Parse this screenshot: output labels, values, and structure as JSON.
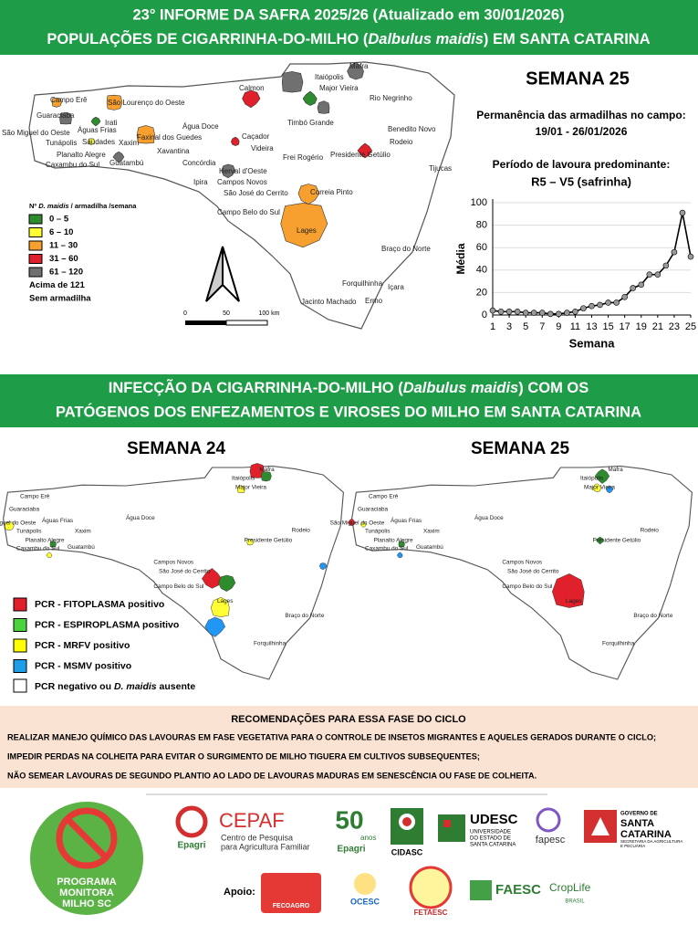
{
  "header": {
    "line1": "23° INFORME DA SAFRA 2025/26 (Atualizado em 30/01/2026)",
    "line2": [
      "POPULAÇÕES DE CIGARRINHA-DO-MILHO (",
      "Dalbulus maidis",
      ") EM SANTA CATARINA"
    ]
  },
  "top_panel": {
    "week_title": "SEMANA 25",
    "permanence_label": "Permanência das armadilhas no campo:",
    "permanence_dates": "19/01 - 26/01/2026",
    "period_label": "Período de lavoura predominante:",
    "period_value": "R5 – V5 (safrinha)"
  },
  "map": {
    "labels": [
      "Campo Erê",
      "São Lourenço do Oeste",
      "Guaraciaba",
      "Irati",
      "Águas Frias",
      "São Miguel do Oeste",
      "Saudades",
      "Xaxim",
      "Faxinal dos Guedes",
      "Água Doce",
      "Xavantina",
      "Tunápolis",
      "Planalto Alegre",
      "Caxambu do Sul",
      "Guatambú",
      "Concórdia",
      "Herval d'Oeste",
      "Ipira",
      "Campos Novos",
      "São José do Cerrito",
      "Campo Belo do Sul",
      "Calmon",
      "Caçador",
      "Videira",
      "Timbó Grande",
      "Frei Rogério",
      "Itaiópolis",
      "Major Vieira",
      "Mafra",
      "Rio Negrinho",
      "Benedito Novo",
      "Rodeio",
      "Presidente Getúlio",
      "Tijucas",
      "Correia Pinto",
      "Lages",
      "Braço do Norte",
      "Forquilhinha",
      "Içara",
      "Jacinto Machado",
      "Ermo"
    ],
    "legend_title": [
      "Nº ",
      "D. maidis",
      " / armadilha /semana"
    ],
    "legend_items": [
      "0 – 5",
      "6 – 10",
      "11 – 30",
      "31 – 60",
      "61 – 120",
      "Acima de 121",
      "Sem armadilha"
    ],
    "scale": [
      "0",
      "50",
      "100 km"
    ]
  },
  "chart_data": {
    "type": "line",
    "x": [
      1,
      2,
      3,
      4,
      5,
      6,
      7,
      8,
      9,
      10,
      11,
      12,
      13,
      14,
      15,
      16,
      17,
      18,
      19,
      20,
      21,
      22,
      23,
      24,
      25
    ],
    "values": [
      4,
      3,
      3,
      3,
      2,
      2,
      2,
      1,
      1,
      2,
      3,
      6,
      8,
      9,
      11,
      11,
      16,
      24,
      27,
      36,
      36,
      44,
      56,
      91,
      52
    ],
    "color": "#000000",
    "marker_color": "#999999",
    "xlim": [
      1,
      25
    ],
    "xticks": [
      1,
      3,
      5,
      7,
      9,
      11,
      13,
      15,
      17,
      19,
      21,
      23,
      25
    ],
    "ylim": [
      0,
      100
    ],
    "yticks": [
      0,
      20,
      40,
      60,
      80,
      100
    ],
    "grid": true,
    "xlabel": "Semana",
    "ylabel": "Média"
  },
  "infection_header": {
    "line1": [
      "INFECÇÃO DA CIGARRINHA-DO-MILHO (",
      "Dalbulus maidis",
      ") COM OS"
    ],
    "line2": "PATÓGENOS DOS ENFEZAMENTOS E VIROSES DO MILHO EM SANTA CATARINA"
  },
  "infection_maps": {
    "titles": [
      "SEMANA 24",
      "SEMANA 25"
    ]
  },
  "pcr_legend": {
    "items": [
      "PCR - FITOPLASMA positivo",
      "PCR - ESPIROPLASMA positivo",
      "PCR - MRFV positivo",
      "PCR - MSMV positivo"
    ],
    "negative": [
      "PCR negativo ou ",
      "D. maidis",
      " ausente"
    ]
  },
  "recommendations": {
    "title": "RECOMENDAÇÕES PARA ESSA FASE DO CICLO",
    "items": [
      "REALIZAR MANEJO QUÍMICO DAS LAVOURAS EM FASE VEGETATIVA PARA O CONTROLE DE INSETOS MIGRANTES E AQUELES GERADOS DURANTE O CICLO;",
      "IMPEDIR PERDAS NA COLHEITA PARA EVITAR O SURGIMENTO DE MILHO TIGUERA EM CULTIVOS SUBSEQUENTES;",
      "NÃO SEMEAR LAVOURAS DE SEGUNDO PLANTIO AO LADO DE LAVOURAS MADURAS EM SENESCÊNCIA OU FASE DE COLHEITA."
    ]
  },
  "footer": {
    "program": [
      "PROGRAMA",
      "MONITORA",
      "MILHO SC"
    ],
    "cepaf": [
      "CEPAF",
      "Centro de Pesquisa",
      "para Agricultura Familiar",
      "Epagri"
    ],
    "anniversary": [
      "50",
      "anos",
      "Epagri"
    ],
    "cidasc": "CIDASC",
    "udesc": [
      "UDESC",
      "UNIVERSIDADE",
      "DO ESTADO DE",
      "SANTA CATARINA"
    ],
    "fapesc": "fapesc",
    "government": [
      "GOVERNO DE",
      "SANTA",
      "CATARINA",
      "SECRETARIA DA AGRICULTURA",
      "E PECUÁRIA"
    ],
    "support_label": "Apoio:",
    "fecoagro": "FECOAGRO",
    "ocesc": "OCESC",
    "fetaesc": "FETAESC",
    "faesc": "FAESC",
    "croplife": [
      "CropLife",
      "BRASIL"
    ]
  }
}
